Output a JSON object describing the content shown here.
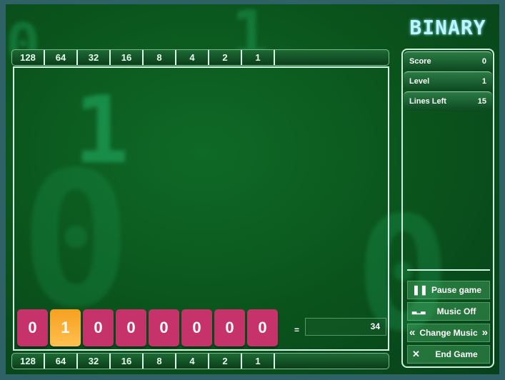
{
  "title": "BINARY",
  "place_values": [
    "128",
    "64",
    "32",
    "16",
    "8",
    "4",
    "2",
    "1"
  ],
  "bits": [
    {
      "value": "0",
      "on": false
    },
    {
      "value": "1",
      "on": true
    },
    {
      "value": "0",
      "on": false
    },
    {
      "value": "0",
      "on": false
    },
    {
      "value": "0",
      "on": false
    },
    {
      "value": "0",
      "on": false
    },
    {
      "value": "0",
      "on": false
    },
    {
      "value": "0",
      "on": false
    }
  ],
  "equals": "=",
  "target": "34",
  "stats": {
    "score_label": "Score",
    "score": "0",
    "level_label": "Level",
    "level": "1",
    "lines_label": "Lines Left",
    "lines": "15"
  },
  "buttons": {
    "pause": "Pause game",
    "music": "Music Off",
    "change_music": "Change Music",
    "end": "End Game"
  },
  "colors": {
    "tile_off": "#c6336a",
    "tile_on": "#f7a020",
    "title": "#bff4ff"
  }
}
